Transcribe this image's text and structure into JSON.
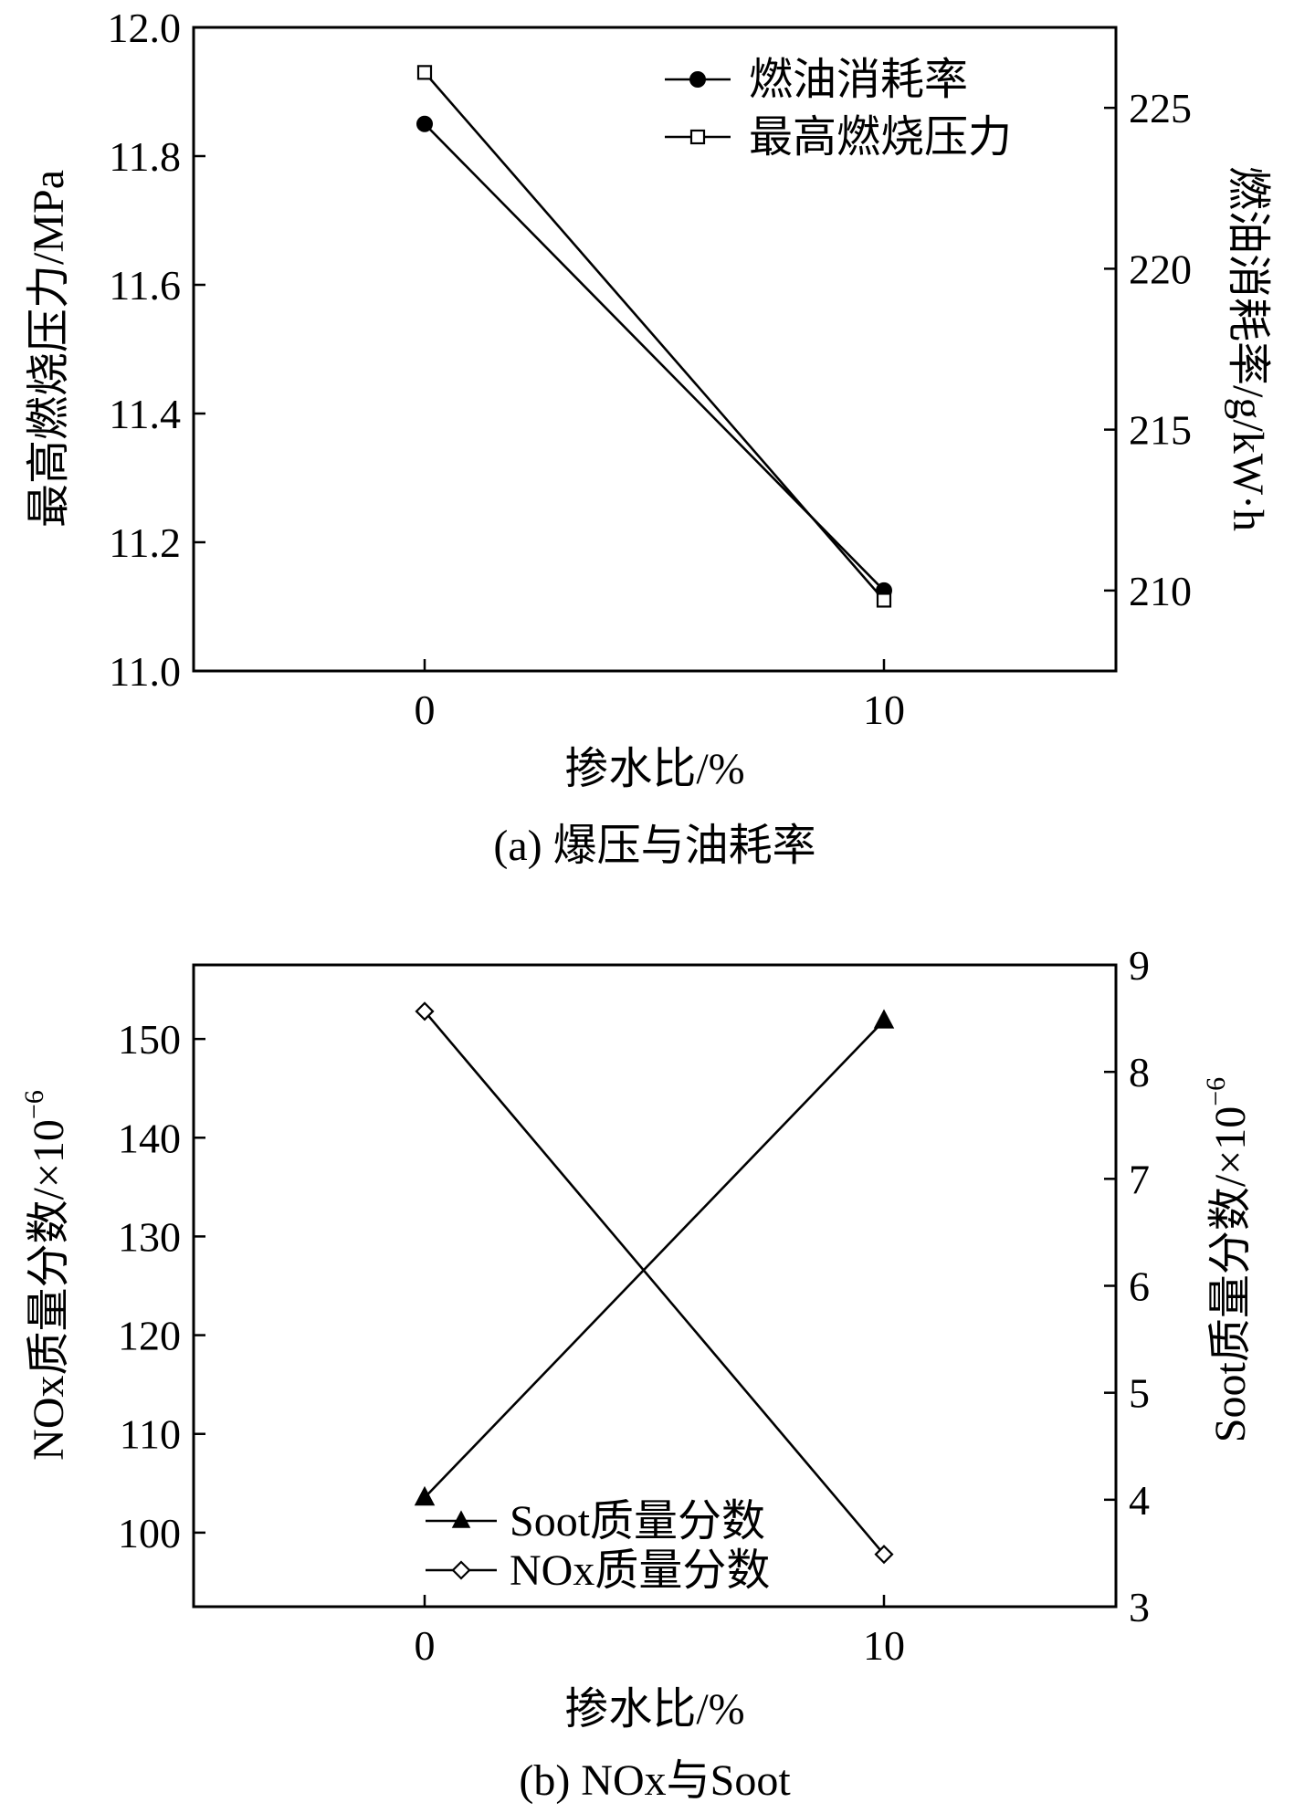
{
  "chart_data": [
    {
      "type": "line",
      "caption": "(a) 爆压与油耗率",
      "xlabel": "掺水比/%",
      "ylabel": "最高燃烧压力/MPa",
      "y2label": "燃油消耗率/g/kW·h",
      "categories": [
        "0",
        "10"
      ],
      "ylim": [
        11.0,
        12.0
      ],
      "yticks": [
        "11.0",
        "11.2",
        "11.4",
        "11.6",
        "11.8",
        "12.0"
      ],
      "y2lim": [
        207.5,
        227.5
      ],
      "y2ticks": [
        "210",
        "215",
        "220",
        "225"
      ],
      "legend_position": "top-right",
      "grid": false,
      "series": [
        {
          "name": "燃油消耗率",
          "axis": "right",
          "marker": "filled-circle",
          "values": [
            224.5,
            210.0
          ]
        },
        {
          "name": "最高燃烧压力",
          "axis": "left",
          "marker": "open-square",
          "values": [
            11.93,
            11.11
          ]
        }
      ]
    },
    {
      "type": "line",
      "caption": "(b) NOx与Soot",
      "xlabel": "掺水比/%",
      "ylabel": "NOx质量分数/×10",
      "ylabel_sup": "−6",
      "y2label": "Soot质量分数/×10",
      "y2label_sup": "−6",
      "categories": [
        "0",
        "10"
      ],
      "ylim": [
        92.5,
        157.5
      ],
      "yticks": [
        "100",
        "110",
        "120",
        "130",
        "140",
        "150"
      ],
      "y2lim": [
        3,
        9
      ],
      "y2ticks": [
        "3",
        "4",
        "5",
        "6",
        "7",
        "8",
        "9"
      ],
      "legend_position": "bottom-center",
      "grid": false,
      "series": [
        {
          "name": "Soot质量分数",
          "axis": "right",
          "marker": "filled-triangle",
          "values": [
            4.02,
            8.48
          ]
        },
        {
          "name": "NOx质量分数",
          "axis": "left",
          "marker": "open-diamond",
          "values": [
            152.8,
            97.8
          ]
        }
      ]
    }
  ]
}
